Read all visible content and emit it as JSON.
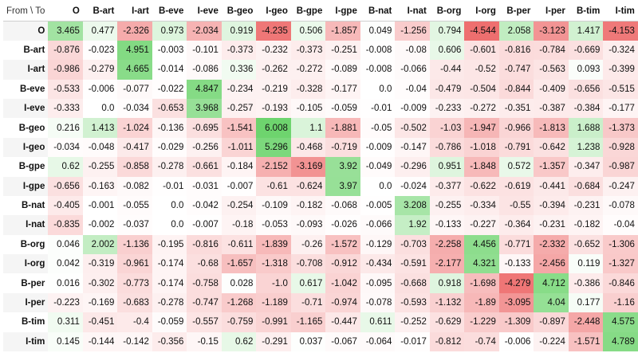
{
  "chart_data": {
    "type": "heatmap",
    "corner_label": "From \\ To",
    "columns": [
      "O",
      "B-art",
      "I-art",
      "B-eve",
      "I-eve",
      "B-geo",
      "I-geo",
      "B-gpe",
      "I-gpe",
      "B-nat",
      "I-nat",
      "B-org",
      "I-org",
      "B-per",
      "I-per",
      "B-tim",
      "I-tim"
    ],
    "rows": [
      "O",
      "B-art",
      "I-art",
      "B-eve",
      "I-eve",
      "B-geo",
      "I-geo",
      "B-gpe",
      "I-gpe",
      "B-nat",
      "I-nat",
      "B-org",
      "I-org",
      "B-per",
      "I-per",
      "B-tim",
      "I-tim"
    ],
    "values": [
      [
        3.465,
        0.477,
        -2.326,
        0.973,
        -2.034,
        0.919,
        -4.235,
        0.506,
        -1.857,
        0.049,
        -1.256,
        0.794,
        -4.544,
        2.058,
        -3.123,
        1.417,
        -4.153
      ],
      [
        -0.876,
        -0.023,
        4.951,
        -0.003,
        -0.101,
        -0.373,
        -0.232,
        -0.373,
        -0.251,
        -0.008,
        -0.08,
        0.606,
        -0.601,
        -0.816,
        -0.784,
        -0.669,
        -0.324
      ],
      [
        -0.986,
        -0.279,
        4.665,
        -0.014,
        -0.086,
        0.336,
        -0.262,
        -0.272,
        -0.089,
        -0.008,
        -0.066,
        -0.44,
        -0.52,
        -0.747,
        -0.563,
        0.093,
        -0.399
      ],
      [
        -0.533,
        -0.006,
        -0.077,
        -0.022,
        4.847,
        -0.234,
        -0.219,
        -0.328,
        -0.177,
        0.0,
        -0.04,
        -0.479,
        -0.504,
        -0.844,
        -0.409,
        -0.656,
        -0.515
      ],
      [
        -0.333,
        0.0,
        -0.034,
        -0.653,
        3.968,
        -0.257,
        -0.193,
        -0.105,
        -0.059,
        -0.01,
        -0.009,
        -0.233,
        -0.272,
        -0.351,
        -0.387,
        -0.384,
        -0.177
      ],
      [
        0.216,
        1.413,
        -1.024,
        -0.136,
        -0.695,
        -1.541,
        6.008,
        1.1,
        -1.881,
        -0.05,
        -0.502,
        -1.03,
        -1.947,
        -0.966,
        -1.813,
        1.688,
        -1.373
      ],
      [
        -0.034,
        -0.048,
        -0.417,
        -0.029,
        -0.256,
        -1.011,
        5.296,
        -0.468,
        -0.719,
        -0.009,
        -0.147,
        -0.786,
        -1.018,
        -0.791,
        -0.642,
        1.238,
        -0.928
      ],
      [
        0.62,
        -0.255,
        -0.858,
        -0.278,
        -0.661,
        -0.184,
        -2.152,
        -3.169,
        3.92,
        -0.049,
        -0.296,
        0.951,
        -1.848,
        0.572,
        -1.357,
        -0.347,
        -0.987
      ],
      [
        -0.656,
        -0.163,
        -0.082,
        -0.01,
        -0.031,
        -0.007,
        -0.61,
        -0.624,
        3.97,
        0.0,
        -0.024,
        -0.377,
        -0.622,
        -0.619,
        -0.441,
        -0.684,
        -0.247
      ],
      [
        -0.405,
        -0.001,
        -0.055,
        0.0,
        -0.042,
        -0.254,
        -0.109,
        -0.182,
        -0.068,
        -0.005,
        3.208,
        -0.255,
        -0.334,
        -0.55,
        -0.394,
        -0.231,
        -0.078
      ],
      [
        -0.835,
        -0.002,
        -0.037,
        0.0,
        -0.007,
        -0.18,
        -0.053,
        -0.093,
        -0.026,
        -0.066,
        1.92,
        -0.133,
        -0.227,
        -0.364,
        -0.231,
        -0.182,
        -0.04
      ],
      [
        0.046,
        2.002,
        -1.136,
        -0.195,
        -0.816,
        -0.611,
        -1.839,
        -0.26,
        -1.572,
        -0.129,
        -0.703,
        -2.258,
        4.456,
        -0.771,
        -2.332,
        -0.652,
        -1.306
      ],
      [
        0.042,
        -0.319,
        -0.961,
        -0.174,
        -0.68,
        -1.657,
        -1.318,
        -0.708,
        -0.912,
        -0.434,
        -0.591,
        -2.177,
        4.321,
        -0.133,
        -2.456,
        0.119,
        -1.327
      ],
      [
        0.016,
        -0.302,
        -0.773,
        -0.174,
        -0.758,
        0.028,
        -1.0,
        0.617,
        -1.042,
        -0.095,
        -0.668,
        0.918,
        -1.698,
        -4.279,
        4.712,
        -0.386,
        -0.846
      ],
      [
        -0.223,
        -0.169,
        -0.683,
        -0.278,
        -0.747,
        -1.268,
        -1.189,
        -0.71,
        -0.974,
        -0.078,
        -0.593,
        -1.132,
        -1.89,
        -3.095,
        4.04,
        0.177,
        -1.16
      ],
      [
        0.311,
        -0.451,
        -0.4,
        -0.059,
        -0.557,
        -0.759,
        -0.991,
        -1.165,
        -0.447,
        0.611,
        -0.252,
        -0.629,
        -1.229,
        -1.309,
        -0.897,
        -2.448,
        4.575
      ],
      [
        0.145,
        -0.144,
        -0.142,
        -0.356,
        -0.15,
        0.62,
        -0.291,
        0.037,
        -0.067,
        -0.064,
        -0.017,
        -0.812,
        -0.74,
        -0.006,
        -0.224,
        -1.571,
        4.789
      ]
    ],
    "vmin": -4.544,
    "vmax": 6.008,
    "colors": {
      "positive": "#6ed46e",
      "negative": "#ee6f6f",
      "neutral": "#ffffff",
      "row_stripe": "#f5f5f5",
      "header_border": "#cfcfcf"
    }
  }
}
